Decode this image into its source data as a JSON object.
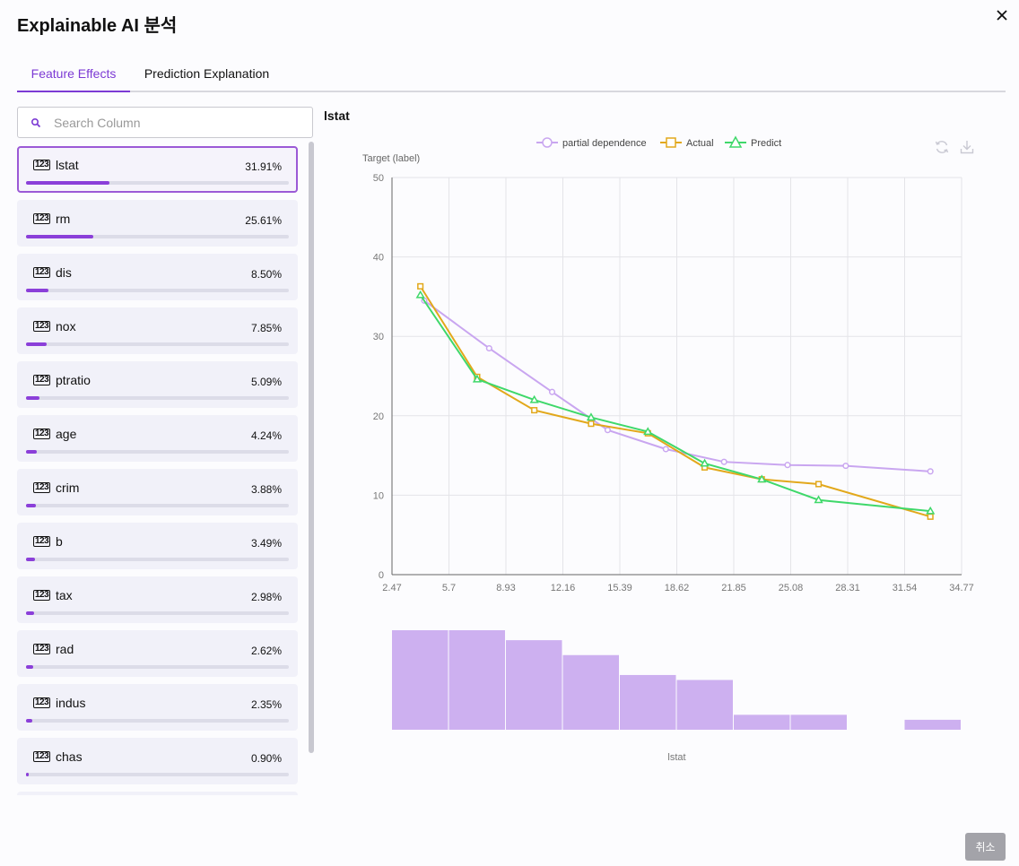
{
  "title": "Explainable AI 분석",
  "tabs": [
    {
      "label": "Feature Effects",
      "active": true
    },
    {
      "label": "Prediction Explanation",
      "active": false
    }
  ],
  "search": {
    "placeholder": "Search Column",
    "value": ""
  },
  "type_icon_label": "123",
  "features": [
    {
      "name": "lstat",
      "pct_label": "31.91%",
      "pct": 31.91,
      "selected": true
    },
    {
      "name": "rm",
      "pct_label": "25.61%",
      "pct": 25.61
    },
    {
      "name": "dis",
      "pct_label": "8.50%",
      "pct": 8.5
    },
    {
      "name": "nox",
      "pct_label": "7.85%",
      "pct": 7.85
    },
    {
      "name": "ptratio",
      "pct_label": "5.09%",
      "pct": 5.09
    },
    {
      "name": "age",
      "pct_label": "4.24%",
      "pct": 4.24
    },
    {
      "name": "crim",
      "pct_label": "3.88%",
      "pct": 3.88
    },
    {
      "name": "b",
      "pct_label": "3.49%",
      "pct": 3.49
    },
    {
      "name": "tax",
      "pct_label": "2.98%",
      "pct": 2.98
    },
    {
      "name": "rad",
      "pct_label": "2.62%",
      "pct": 2.62
    },
    {
      "name": "indus",
      "pct_label": "2.35%",
      "pct": 2.35
    },
    {
      "name": "chas",
      "pct_label": "0.90%",
      "pct": 0.9
    }
  ],
  "chart_title": "lstat",
  "cancel_label": "취소",
  "colors": {
    "accent": "#7c3ad4",
    "pd": "#c9a6f0",
    "actual": "#e2a81b",
    "predict": "#3fd86a",
    "hist": "#cdb0f0"
  },
  "chart_data": {
    "type": "line",
    "ylabel": "Target (label)",
    "xlabel": "lstat",
    "ylim": [
      0,
      50
    ],
    "yticks": [
      0,
      10,
      20,
      30,
      40,
      50
    ],
    "xticks": [
      "2.47",
      "5.7",
      "8.93",
      "12.16",
      "15.39",
      "18.62",
      "21.85",
      "25.08",
      "28.31",
      "31.54",
      "34.77"
    ],
    "xlim": [
      2.47,
      34.77
    ],
    "legend_position": "top",
    "series": [
      {
        "name": "partial dependence",
        "marker": "circle",
        "x": [
          4.3,
          7.98,
          11.55,
          14.7,
          18.0,
          21.3,
          24.9,
          28.2,
          33.0
        ],
        "y": [
          34.5,
          28.5,
          23.0,
          18.2,
          15.8,
          14.2,
          13.8,
          13.7,
          13.0
        ]
      },
      {
        "name": "Actual",
        "marker": "square",
        "x": [
          4.08,
          7.3,
          10.54,
          13.76,
          16.98,
          20.2,
          23.44,
          26.66,
          33.0
        ],
        "y": [
          36.3,
          24.9,
          20.7,
          19.0,
          17.8,
          13.5,
          12.0,
          11.4,
          7.3
        ]
      },
      {
        "name": "Predict",
        "marker": "triangle",
        "x": [
          4.08,
          7.3,
          10.54,
          13.76,
          16.98,
          20.2,
          23.44,
          26.66,
          33.0
        ],
        "y": [
          35.2,
          24.6,
          22.0,
          19.8,
          18.0,
          14.0,
          12.0,
          9.4,
          8.0
        ]
      }
    ],
    "histogram": {
      "bins": [
        [
          2.47,
          5.7
        ],
        [
          5.7,
          8.93
        ],
        [
          8.93,
          12.16
        ],
        [
          12.16,
          15.39
        ],
        [
          15.39,
          18.62
        ],
        [
          18.62,
          21.85
        ],
        [
          21.85,
          25.08
        ],
        [
          25.08,
          28.31
        ],
        [
          28.31,
          31.54
        ],
        [
          31.54,
          34.77
        ]
      ],
      "counts": [
        1.0,
        1.0,
        0.9,
        0.75,
        0.55,
        0.5,
        0.15,
        0.15,
        0.0,
        0.1
      ]
    }
  }
}
